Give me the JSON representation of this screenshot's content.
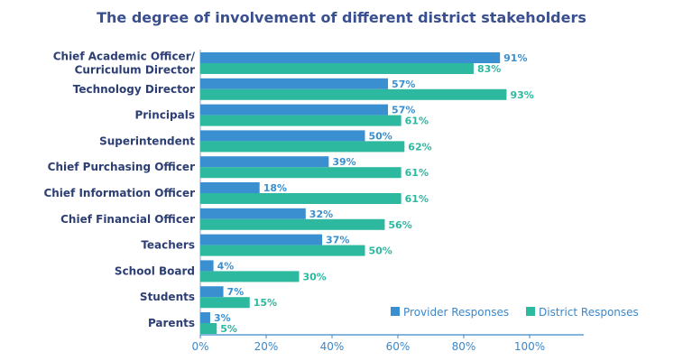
{
  "colors": {
    "provider": "#3a8fd0",
    "district": "#2db8a0",
    "title": "#3a4f8f",
    "category": "#2c3e73",
    "axis": "#3c87c8"
  },
  "chart_data": {
    "type": "bar",
    "orientation": "horizontal",
    "title": "The degree of involvement of different district stakeholders",
    "categories": [
      [
        "Chief Academic Officer/",
        "Curriculum Director"
      ],
      [
        "Technology Director"
      ],
      [
        "Principals"
      ],
      [
        "Superintendent"
      ],
      [
        "Chief Purchasing Officer"
      ],
      [
        "Chief Information Officer"
      ],
      [
        "Chief Financial Officer"
      ],
      [
        "Teachers"
      ],
      [
        "School Board"
      ],
      [
        "Students"
      ],
      [
        "Parents"
      ]
    ],
    "series": [
      {
        "name": "Provider Responses",
        "values": [
          91,
          57,
          57,
          50,
          39,
          18,
          32,
          37,
          4,
          7,
          3
        ]
      },
      {
        "name": "District Responses",
        "values": [
          83,
          93,
          61,
          62,
          61,
          61,
          56,
          50,
          30,
          15,
          5
        ]
      }
    ],
    "xlim": [
      0,
      100
    ],
    "xticks": [
      "0%",
      "20%",
      "40%",
      "60%",
      "80%",
      "100%"
    ],
    "value_suffix": "%",
    "legend_position": "bottom-right",
    "grid": false
  }
}
